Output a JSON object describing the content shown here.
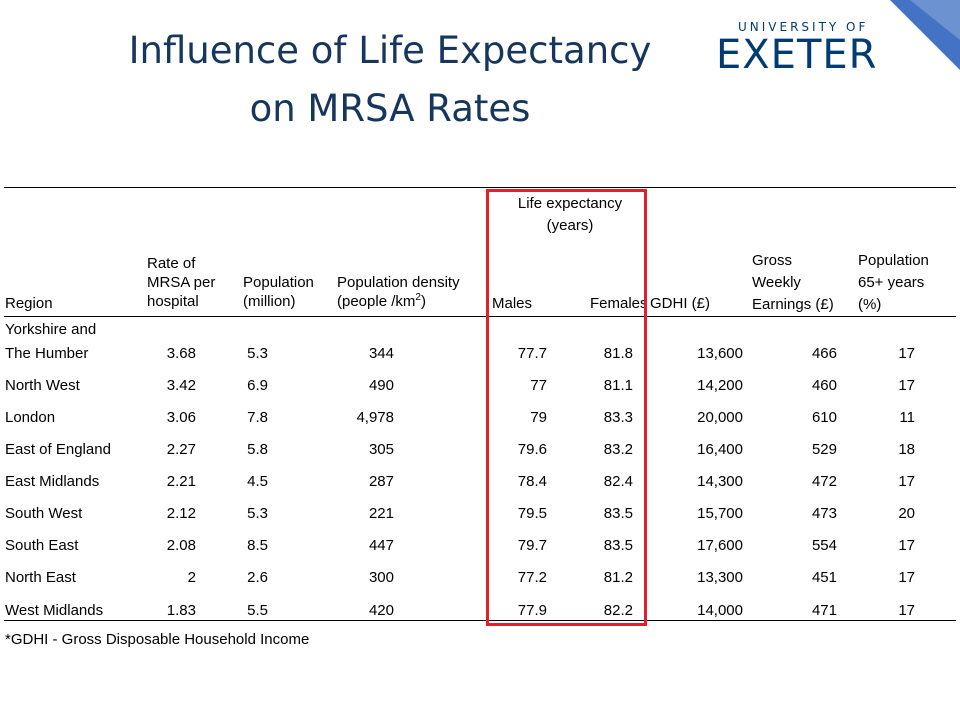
{
  "slide": {
    "title_line1": "Influence of Life Expectancy",
    "title_line2": "on MRSA Rates",
    "logo_top": "UNIVERSITY OF",
    "logo_main": "EXETER",
    "accent_color": "#4472c4",
    "highlight_color": "#e3202a"
  },
  "table": {
    "headers": {
      "life_expectancy_l1": "Life expectancy",
      "life_expectancy_l2": "(years)",
      "region": "Region",
      "mrsa_l1": "Rate of",
      "mrsa_l2": "MRSA per",
      "mrsa_l3": "hospital",
      "pop_l1": "Population",
      "pop_l2": "(million)",
      "density_l1": "Population density",
      "density_l2": "(people /km",
      "density_sup": "2",
      "density_close": ")",
      "males": "Males",
      "females": "Females",
      "gdhi": "GDHI (£)",
      "gwe_l1": "Gross",
      "gwe_l2": "Weekly",
      "gwe_l3": "Earnings (£)",
      "p65_l1": "Population",
      "p65_l2": "65+ years",
      "p65_l3": "(%)"
    },
    "rows": [
      {
        "region_l1": "Yorkshire and",
        "region": "The Humber",
        "mrsa": "3.68",
        "pop": "5.3",
        "density": "344",
        "males": "77.7",
        "females": "81.8",
        "gdhi": "13,600",
        "gwe": "466",
        "p65": "17"
      },
      {
        "region": "North West",
        "mrsa": "3.42",
        "pop": "6.9",
        "density": "490",
        "males": "77",
        "females": "81.1",
        "gdhi": "14,200",
        "gwe": "460",
        "p65": "17"
      },
      {
        "region": "London",
        "mrsa": "3.06",
        "pop": "7.8",
        "density": "4,978",
        "males": "79",
        "females": "83.3",
        "gdhi": "20,000",
        "gwe": "610",
        "p65": "11"
      },
      {
        "region": "East of England",
        "mrsa": "2.27",
        "pop": "5.8",
        "density": "305",
        "males": "79.6",
        "females": "83.2",
        "gdhi": "16,400",
        "gwe": "529",
        "p65": "18"
      },
      {
        "region": "East Midlands",
        "mrsa": "2.21",
        "pop": "4.5",
        "density": "287",
        "males": "78.4",
        "females": "82.4",
        "gdhi": "14,300",
        "gwe": "472",
        "p65": "17"
      },
      {
        "region": "South West",
        "mrsa": "2.12",
        "pop": "5.3",
        "density": "221",
        "males": "79.5",
        "females": "83.5",
        "gdhi": "15,700",
        "gwe": "473",
        "p65": "20"
      },
      {
        "region": "South East",
        "mrsa": "2.08",
        "pop": "8.5",
        "density": "447",
        "males": "79.7",
        "females": "83.5",
        "gdhi": "17,600",
        "gwe": "554",
        "p65": "17"
      },
      {
        "region": "North East",
        "mrsa": "2",
        "pop": "2.6",
        "density": "300",
        "males": "77.2",
        "females": "81.2",
        "gdhi": "13,300",
        "gwe": "451",
        "p65": "17"
      },
      {
        "region": "West Midlands",
        "mrsa": "1.83",
        "pop": "5.5",
        "density": "420",
        "males": "77.9",
        "females": "82.2",
        "gdhi": "14,000",
        "gwe": "471",
        "p65": "17"
      }
    ],
    "footnote": "*GDHI - Gross Disposable Household Income"
  }
}
